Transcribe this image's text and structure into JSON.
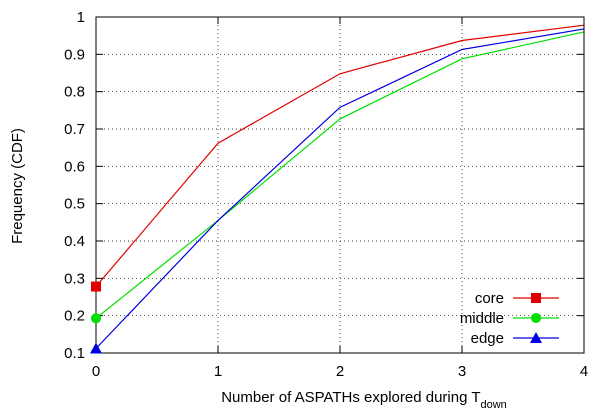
{
  "chart_data": {
    "type": "line",
    "xlabel": "Number of ASPATHs explored during T",
    "xlabel_subscript": "down",
    "ylabel": "Frequency (CDF)",
    "x": [
      0,
      1,
      2,
      3,
      4
    ],
    "xlim": [
      0,
      4
    ],
    "ylim": [
      0.1,
      1
    ],
    "x_ticks": [
      "0",
      "1",
      "2",
      "3",
      "4"
    ],
    "y_ticks": [
      "0.1",
      "0.2",
      "0.3",
      "0.4",
      "0.5",
      "0.6",
      "0.7",
      "0.8",
      "0.9",
      "1"
    ],
    "y_tick_values": [
      0.1,
      0.2,
      0.3,
      0.4,
      0.5,
      0.6,
      0.7,
      0.8,
      0.9,
      1.0
    ],
    "grid": true,
    "legend_position": "bottom-right",
    "series": [
      {
        "name": "core",
        "color": "#e00000",
        "marker": "square",
        "values": [
          0.278,
          0.662,
          0.848,
          0.937,
          0.978
        ]
      },
      {
        "name": "middle",
        "color": "#00e000",
        "marker": "circle",
        "values": [
          0.193,
          0.455,
          0.727,
          0.888,
          0.96
        ]
      },
      {
        "name": "edge",
        "color": "#0000e0",
        "marker": "triangle",
        "values": [
          0.112,
          0.455,
          0.758,
          0.913,
          0.968
        ]
      }
    ]
  }
}
